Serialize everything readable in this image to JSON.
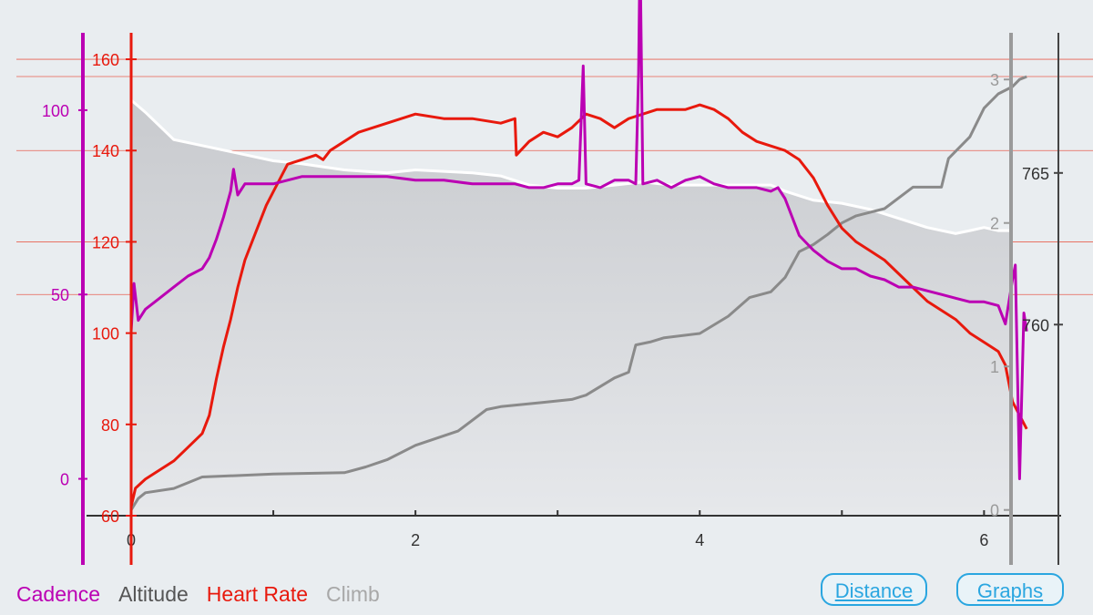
{
  "legend": {
    "cadence": "Cadence",
    "altitude": "Altitude",
    "heart_rate": "Heart Rate",
    "climb": "Climb"
  },
  "buttons": {
    "distance": "Distance",
    "graphs": "Graphs"
  },
  "colors": {
    "cadence": "#bb00b3",
    "heart_rate": "#e8190d",
    "altitude": "#8a8a8a",
    "climb": "#a8a8a8",
    "background": "#e9edf0",
    "button": "#2aa6e0"
  },
  "chart_data": {
    "type": "line",
    "x_axis": {
      "range": [
        0,
        6.35
      ],
      "ticks": [
        "0",
        "2",
        "4",
        "6"
      ]
    },
    "axes": {
      "heart_rate": {
        "range": [
          60,
          165
        ],
        "ticks": [
          "60",
          "80",
          "100",
          "120",
          "140",
          "160"
        ]
      },
      "cadence": {
        "range": [
          -10,
          120
        ],
        "ticks": [
          "0",
          "50",
          "100"
        ]
      },
      "altitude": {
        "range": [
          753.7,
          769.5
        ],
        "ticks": [
          "760",
          "765"
        ]
      },
      "climb": {
        "range": [
          -0.04,
          3.3
        ],
        "ticks": [
          "0",
          "1",
          "2",
          "3"
        ]
      }
    },
    "series": [
      {
        "name": "Climb",
        "axis": "altitude",
        "style": "area",
        "x": [
          0,
          0.1,
          0.3,
          0.5,
          0.8,
          1.0,
          1.2,
          1.5,
          1.8,
          2.0,
          2.4,
          2.6,
          2.8,
          3.0,
          3.2,
          3.4,
          3.6,
          3.8,
          4.0,
          4.3,
          4.5,
          4.6,
          4.8,
          5.0,
          5.2,
          5.4,
          5.6,
          5.8,
          5.9,
          6.0,
          6.1,
          6.2
        ],
        "y": [
          767.4,
          767.0,
          766.1,
          765.9,
          765.6,
          765.4,
          765.3,
          765.1,
          765.0,
          765.1,
          765.0,
          764.9,
          764.6,
          764.5,
          764.5,
          764.6,
          764.7,
          764.6,
          764.6,
          764.6,
          764.6,
          764.4,
          764.1,
          764.0,
          763.8,
          763.5,
          763.2,
          763.0,
          763.1,
          763.2,
          763.1,
          763.1
        ]
      },
      {
        "name": "Altitude",
        "axis": "climb",
        "style": "line",
        "x": [
          0,
          0.05,
          0.1,
          0.3,
          0.5,
          1.0,
          1.5,
          1.65,
          1.8,
          2.0,
          2.3,
          2.5,
          2.6,
          2.9,
          3.1,
          3.2,
          3.4,
          3.5,
          3.55,
          3.65,
          3.75,
          4.0,
          4.2,
          4.35,
          4.5,
          4.6,
          4.7,
          4.8,
          4.9,
          5.0,
          5.1,
          5.3,
          5.5,
          5.7,
          5.75,
          5.9,
          6.0,
          6.1,
          6.2,
          6.25,
          6.3
        ],
        "y": [
          0.0,
          0.08,
          0.12,
          0.15,
          0.23,
          0.25,
          0.26,
          0.3,
          0.35,
          0.45,
          0.55,
          0.7,
          0.72,
          0.75,
          0.77,
          0.8,
          0.92,
          0.96,
          1.15,
          1.17,
          1.2,
          1.23,
          1.35,
          1.48,
          1.52,
          1.62,
          1.8,
          1.85,
          1.92,
          2.0,
          2.05,
          2.1,
          2.25,
          2.25,
          2.45,
          2.6,
          2.8,
          2.9,
          2.95,
          3.0,
          3.02
        ]
      },
      {
        "name": "Heart Rate",
        "axis": "heart_rate",
        "style": "line",
        "x": [
          0,
          0.03,
          0.1,
          0.2,
          0.3,
          0.4,
          0.5,
          0.55,
          0.6,
          0.65,
          0.7,
          0.75,
          0.8,
          0.85,
          0.9,
          0.95,
          1.0,
          1.05,
          1.1,
          1.2,
          1.3,
          1.35,
          1.4,
          1.5,
          1.6,
          1.7,
          1.8,
          1.9,
          2.0,
          2.2,
          2.4,
          2.6,
          2.7,
          2.71,
          2.8,
          2.9,
          3.0,
          3.1,
          3.2,
          3.3,
          3.4,
          3.5,
          3.6,
          3.7,
          3.8,
          3.9,
          4.0,
          4.1,
          4.2,
          4.3,
          4.4,
          4.5,
          4.6,
          4.7,
          4.8,
          4.85,
          4.9,
          5.0,
          5.1,
          5.2,
          5.3,
          5.4,
          5.5,
          5.6,
          5.7,
          5.8,
          5.9,
          6.0,
          6.1,
          6.15,
          6.2,
          6.25,
          6.3
        ],
        "y": [
          62,
          66,
          68,
          70,
          72,
          75,
          78,
          82,
          90,
          97,
          103,
          110,
          116,
          120,
          124,
          128,
          131,
          134,
          137,
          138,
          139,
          138,
          140,
          142,
          144,
          145,
          146,
          147,
          148,
          147,
          147,
          146,
          147,
          139,
          142,
          144,
          143,
          145,
          148,
          147,
          145,
          147,
          148,
          149,
          149,
          149,
          150,
          149,
          147,
          144,
          142,
          141,
          140,
          138,
          134,
          131,
          128,
          123,
          120,
          118,
          116,
          113,
          110,
          107,
          105,
          103,
          100,
          98,
          96,
          93,
          85,
          82,
          79
        ]
      },
      {
        "name": "Cadence",
        "axis": "cadence",
        "style": "line",
        "x": [
          0,
          0.02,
          0.05,
          0.1,
          0.2,
          0.3,
          0.4,
          0.5,
          0.55,
          0.6,
          0.65,
          0.7,
          0.72,
          0.75,
          0.8,
          0.9,
          1.0,
          1.1,
          1.2,
          1.4,
          1.6,
          1.8,
          2.0,
          2.2,
          2.4,
          2.6,
          2.7,
          2.8,
          2.9,
          3.0,
          3.1,
          3.15,
          3.18,
          3.2,
          3.3,
          3.4,
          3.5,
          3.55,
          3.57,
          3.58,
          3.6,
          3.7,
          3.8,
          3.9,
          4.0,
          4.1,
          4.2,
          4.3,
          4.4,
          4.5,
          4.55,
          4.6,
          4.7,
          4.8,
          4.9,
          5.0,
          5.1,
          5.2,
          5.3,
          5.4,
          5.5,
          5.6,
          5.7,
          5.8,
          5.9,
          6.0,
          6.1,
          6.15,
          6.2,
          6.22,
          6.25,
          6.28,
          6.3
        ],
        "y": [
          40,
          53,
          43,
          46,
          49,
          52,
          55,
          57,
          60,
          65,
          71,
          78,
          84,
          77,
          80,
          80,
          80,
          81,
          82,
          82,
          82,
          82,
          81,
          81,
          80,
          80,
          80,
          79,
          79,
          80,
          80,
          81,
          112,
          80,
          79,
          81,
          81,
          80,
          110,
          145,
          80,
          81,
          79,
          81,
          82,
          80,
          79,
          79,
          79,
          78,
          79,
          76,
          66,
          62,
          59,
          57,
          57,
          55,
          54,
          52,
          52,
          51,
          50,
          49,
          48,
          48,
          47,
          42,
          54,
          58,
          0,
          45,
          40
        ]
      }
    ],
    "title": "",
    "grid": "horizontal",
    "legend_position": "bottom-left"
  }
}
